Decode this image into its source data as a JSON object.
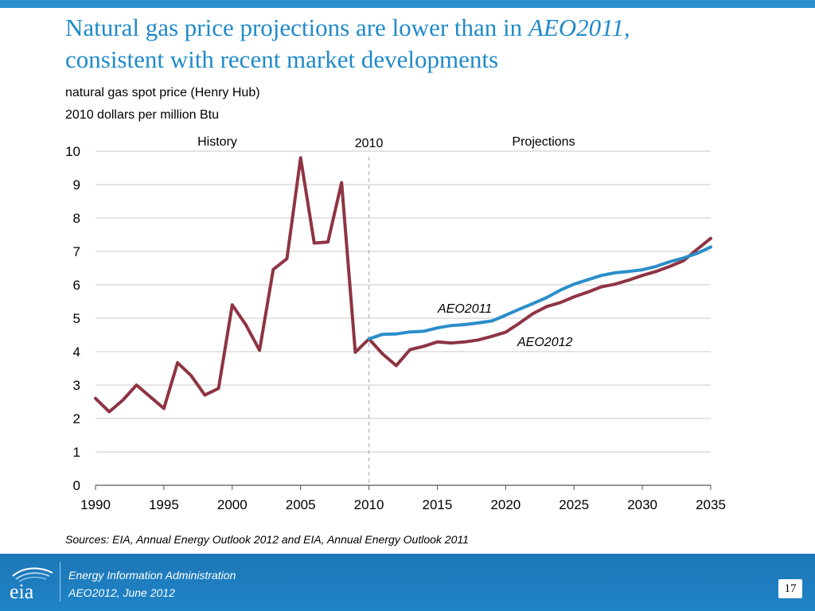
{
  "title": {
    "part1": "Natural gas price projections are lower than in ",
    "part_italic": "AEO2011,",
    "part2": "consistent with recent market developments"
  },
  "subtitle_line1": "natural gas spot price (Henry Hub)",
  "subtitle_line2": "2010 dollars per million Btu",
  "chart_data": {
    "type": "line",
    "region_labels": {
      "history": "History",
      "marker": "2010",
      "projections": "Projections"
    },
    "marker_x": 2010,
    "xlim": [
      1990,
      2035
    ],
    "ylim": [
      0,
      10
    ],
    "x_ticks": [
      1990,
      1995,
      2000,
      2005,
      2010,
      2015,
      2020,
      2025,
      2030,
      2035
    ],
    "y_ticks": [
      0,
      1,
      2,
      3,
      4,
      5,
      6,
      7,
      8,
      9,
      10
    ],
    "grid": true,
    "series": [
      {
        "name": "AEO2011",
        "color": "#2a8ec9",
        "x": [
          2010,
          2011,
          2012,
          2013,
          2014,
          2015,
          2016,
          2017,
          2018,
          2019,
          2020,
          2021,
          2022,
          2023,
          2024,
          2025,
          2026,
          2027,
          2028,
          2029,
          2030,
          2031,
          2032,
          2033,
          2034,
          2035
        ],
        "y": [
          4.38,
          4.52,
          4.53,
          4.59,
          4.61,
          4.71,
          4.78,
          4.81,
          4.86,
          4.92,
          5.09,
          5.27,
          5.44,
          5.62,
          5.84,
          6.02,
          6.15,
          6.28,
          6.36,
          6.4,
          6.45,
          6.55,
          6.69,
          6.8,
          6.94,
          7.13
        ]
      },
      {
        "name": "AEO2012",
        "color": "#8e3443",
        "x": [
          1990,
          1991,
          1992,
          1993,
          1994,
          1995,
          1996,
          1997,
          1998,
          1999,
          2000,
          2001,
          2002,
          2003,
          2004,
          2005,
          2006,
          2007,
          2008,
          2009,
          2010,
          2011,
          2012,
          2013,
          2014,
          2015,
          2016,
          2017,
          2018,
          2019,
          2020,
          2021,
          2022,
          2023,
          2024,
          2025,
          2026,
          2027,
          2028,
          2029,
          2030,
          2031,
          2032,
          2033,
          2034,
          2035
        ],
        "y": [
          2.6,
          2.2,
          2.55,
          3.0,
          2.65,
          2.3,
          3.67,
          3.28,
          2.7,
          2.9,
          5.4,
          4.8,
          4.04,
          6.46,
          6.78,
          9.8,
          7.25,
          7.28,
          9.06,
          3.98,
          4.38,
          3.93,
          3.58,
          4.06,
          4.16,
          4.29,
          4.26,
          4.29,
          4.35,
          4.46,
          4.58,
          4.85,
          5.14,
          5.35,
          5.47,
          5.64,
          5.78,
          5.94,
          6.02,
          6.14,
          6.28,
          6.4,
          6.55,
          6.72,
          7.06,
          7.39
        ]
      }
    ],
    "series_labels": [
      "AEO2011",
      "AEO2012"
    ]
  },
  "source": "Sources: EIA, Annual Energy Outlook 2012 and EIA, Annual Energy Outlook 2011",
  "footer": {
    "logo_text": "eia",
    "line1": "Energy Information Administration",
    "line2": "AEO2012, June 2012",
    "page_number": "17"
  }
}
